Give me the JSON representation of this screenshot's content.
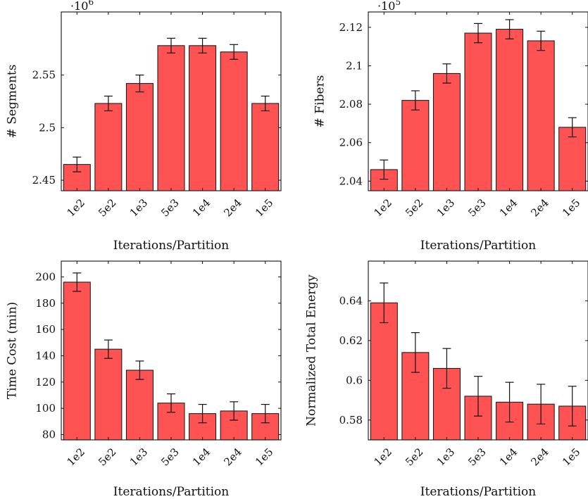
{
  "chart_data": [
    {
      "id": "segments",
      "type": "bar",
      "categories": [
        "1e2",
        "5e2",
        "1e3",
        "5e3",
        "1e4",
        "2e4",
        "1e5"
      ],
      "values": [
        2.465,
        2.523,
        2.542,
        2.578,
        2.578,
        2.572,
        2.523
      ],
      "errors": [
        0.007,
        0.007,
        0.008,
        0.007,
        0.007,
        0.007,
        0.007
      ],
      "xlabel": "Iterations/Partition",
      "ylabel": "# Segments",
      "ylim": [
        2.44,
        2.61
      ],
      "yticks": [
        2.45,
        2.5,
        2.55
      ],
      "ytick_labels": [
        "2.45",
        "2.5",
        "2.55"
      ],
      "multiplier_base": "·10",
      "multiplier_exp": "6"
    },
    {
      "id": "fibers",
      "type": "bar",
      "categories": [
        "1e2",
        "5e2",
        "1e3",
        "5e3",
        "1e4",
        "2e4",
        "1e5"
      ],
      "values": [
        2.046,
        2.082,
        2.096,
        2.117,
        2.119,
        2.113,
        2.068
      ],
      "errors": [
        0.005,
        0.005,
        0.005,
        0.005,
        0.005,
        0.005,
        0.005
      ],
      "xlabel": "Iterations/Partition",
      "ylabel": "# Fibers",
      "ylim": [
        2.035,
        2.128
      ],
      "yticks": [
        2.04,
        2.06,
        2.08,
        2.1,
        2.12
      ],
      "ytick_labels": [
        "2.04",
        "2.06",
        "2.08",
        "2.1",
        "2.12"
      ],
      "multiplier_base": "·10",
      "multiplier_exp": "5"
    },
    {
      "id": "time",
      "type": "bar",
      "categories": [
        "1e2",
        "5e2",
        "1e3",
        "5e3",
        "1e4",
        "2e4",
        "1e5"
      ],
      "values": [
        196,
        145,
        129,
        104,
        96,
        98,
        96
      ],
      "errors": [
        7,
        7,
        7,
        7,
        7,
        7,
        7
      ],
      "xlabel": "Iterations/Partition",
      "ylabel": "Time Cost (min)",
      "ylim": [
        76,
        212
      ],
      "yticks": [
        80,
        100,
        120,
        140,
        160,
        180,
        200
      ],
      "ytick_labels": [
        "80",
        "100",
        "120",
        "140",
        "160",
        "180",
        "200"
      ]
    },
    {
      "id": "energy",
      "type": "bar",
      "categories": [
        "1e2",
        "5e2",
        "1e3",
        "5e3",
        "1e4",
        "2e4",
        "1e5"
      ],
      "values": [
        0.639,
        0.614,
        0.606,
        0.592,
        0.589,
        0.588,
        0.587
      ],
      "errors": [
        0.01,
        0.01,
        0.01,
        0.01,
        0.01,
        0.01,
        0.01
      ],
      "xlabel": "Iterations/Partition",
      "ylabel": "Normalized Total Energy",
      "ylim": [
        0.57,
        0.66
      ],
      "yticks": [
        0.58,
        0.6,
        0.62,
        0.64
      ],
      "ytick_labels": [
        "0.58",
        "0.6",
        "0.62",
        "0.64"
      ]
    }
  ],
  "colors": {
    "bar_fill": "#ff5252",
    "stroke": "#111111"
  }
}
